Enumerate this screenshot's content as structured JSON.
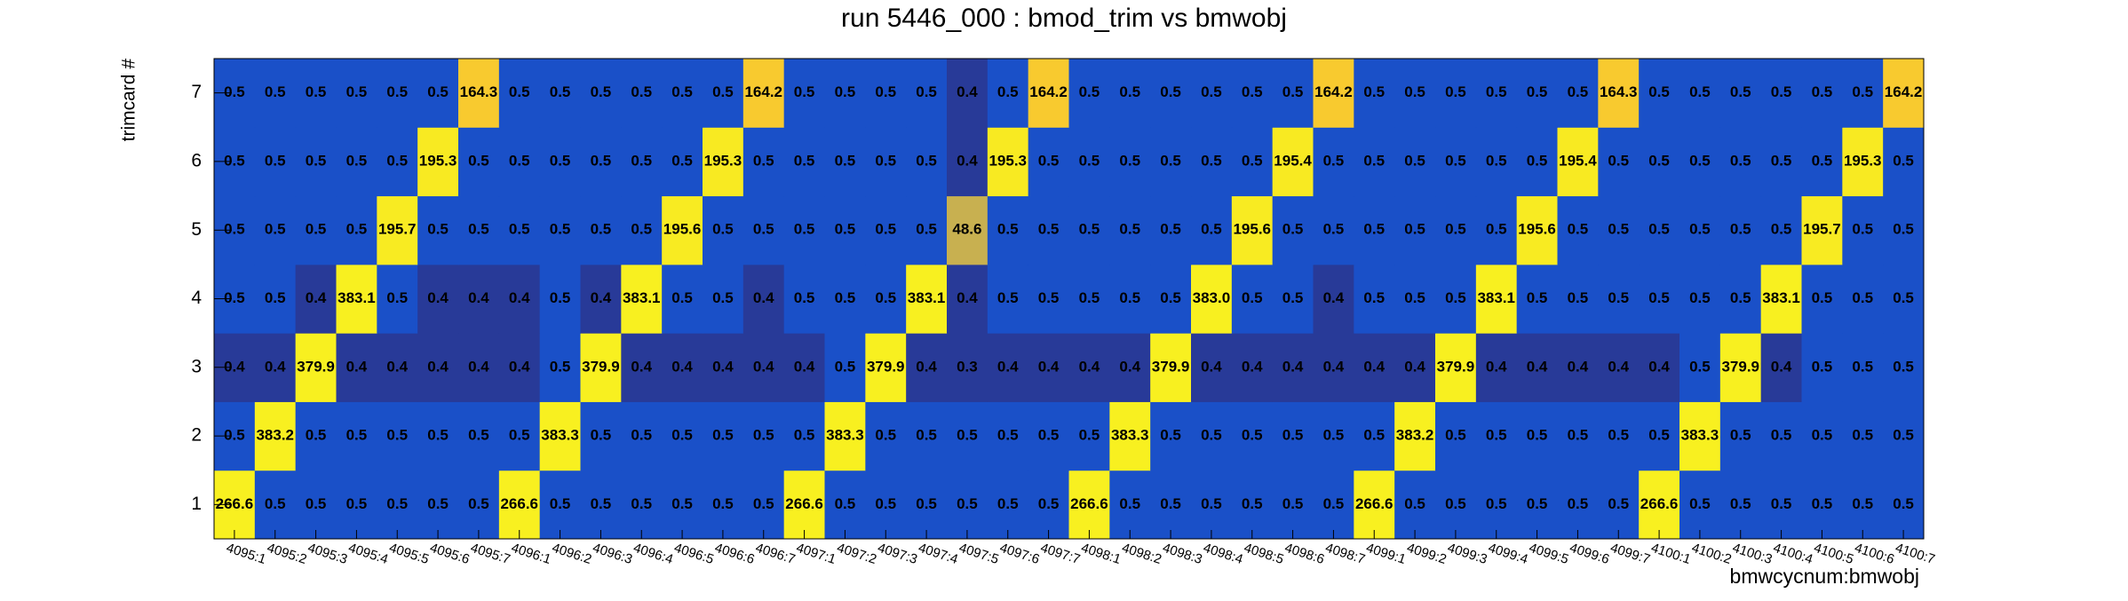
{
  "chart_data": {
    "type": "heatmap",
    "title": "run 5446_000 : bmod_trim vs bmwobj",
    "x_label": "bmwcycnum:bmwobj",
    "y_label": "trimcard #",
    "x_categories": [
      "4095:1",
      "4095:2",
      "4095:3",
      "4095:4",
      "4095:5",
      "4095:6",
      "4095:7",
      "4096:1",
      "4096:2",
      "4096:3",
      "4096:4",
      "4096:5",
      "4096:6",
      "4096:7",
      "4097:1",
      "4097:2",
      "4097:3",
      "4097:4",
      "4097:5",
      "4097:6",
      "4097:7",
      "4098:1",
      "4098:2",
      "4098:3",
      "4098:4",
      "4098:5",
      "4098:6",
      "4098:7",
      "4099:1",
      "4099:2",
      "4099:3",
      "4099:4",
      "4099:5",
      "4099:6",
      "4099:7",
      "4100:1",
      "4100:2",
      "4100:3",
      "4100:4",
      "4100:5",
      "4100:6",
      "4100:7"
    ],
    "y_categories": [
      "1",
      "2",
      "3",
      "4",
      "5",
      "6",
      "7"
    ],
    "values": [
      [
        266.6,
        0.5,
        0.5,
        0.5,
        0.5,
        0.5,
        0.5,
        266.6,
        0.5,
        0.5,
        0.5,
        0.5,
        0.5,
        0.5,
        266.6,
        0.5,
        0.5,
        0.5,
        0.5,
        0.5,
        0.5,
        266.6,
        0.5,
        0.5,
        0.5,
        0.5,
        0.5,
        0.5,
        266.6,
        0.5,
        0.5,
        0.5,
        0.5,
        0.5,
        0.5,
        266.6,
        0.5,
        0.5,
        0.5,
        0.5,
        0.5,
        0.5
      ],
      [
        0.5,
        383.2,
        0.5,
        0.5,
        0.5,
        0.5,
        0.5,
        0.5,
        383.3,
        0.5,
        0.5,
        0.5,
        0.5,
        0.5,
        0.5,
        383.3,
        0.5,
        0.5,
        0.5,
        0.5,
        0.5,
        0.5,
        383.3,
        0.5,
        0.5,
        0.5,
        0.5,
        0.5,
        0.5,
        383.2,
        0.5,
        0.5,
        0.5,
        0.5,
        0.5,
        0.5,
        383.3,
        0.5,
        0.5,
        0.5,
        0.5,
        0.5
      ],
      [
        0.4,
        0.4,
        379.9,
        0.4,
        0.4,
        0.4,
        0.4,
        0.4,
        0.5,
        379.9,
        0.4,
        0.4,
        0.4,
        0.4,
        0.4,
        0.5,
        379.9,
        0.4,
        0.3,
        0.4,
        0.4,
        0.4,
        0.4,
        379.9,
        0.4,
        0.4,
        0.4,
        0.4,
        0.4,
        0.4,
        379.9,
        0.4,
        0.4,
        0.4,
        0.4,
        0.4,
        0.5,
        379.9,
        0.4,
        0.5,
        0.5,
        0.5
      ],
      [
        0.5,
        0.5,
        0.4,
        383.1,
        0.5,
        0.4,
        0.4,
        0.4,
        0.5,
        0.4,
        383.1,
        0.5,
        0.5,
        0.4,
        0.5,
        0.5,
        0.5,
        383.1,
        0.4,
        0.5,
        0.5,
        0.5,
        0.5,
        0.5,
        383.0,
        0.5,
        0.5,
        0.4,
        0.5,
        0.5,
        0.5,
        383.1,
        0.5,
        0.5,
        0.5,
        0.5,
        0.5,
        0.5,
        383.1,
        0.5,
        0.5,
        0.5
      ],
      [
        0.5,
        0.5,
        0.5,
        0.5,
        195.7,
        0.5,
        0.5,
        0.5,
        0.5,
        0.5,
        0.5,
        195.6,
        0.5,
        0.5,
        0.5,
        0.5,
        0.5,
        0.5,
        48.6,
        0.5,
        0.5,
        0.5,
        0.5,
        0.5,
        0.5,
        195.6,
        0.5,
        0.5,
        0.5,
        0.5,
        0.5,
        0.5,
        195.6,
        0.5,
        0.5,
        0.5,
        0.5,
        0.5,
        0.5,
        195.7,
        0.5,
        0.5
      ],
      [
        0.5,
        0.5,
        0.5,
        0.5,
        0.5,
        195.3,
        0.5,
        0.5,
        0.5,
        0.5,
        0.5,
        0.5,
        195.3,
        0.5,
        0.5,
        0.5,
        0.5,
        0.5,
        0.4,
        195.3,
        0.5,
        0.5,
        0.5,
        0.5,
        0.5,
        0.5,
        195.4,
        0.5,
        0.5,
        0.5,
        0.5,
        0.5,
        0.5,
        195.4,
        0.5,
        0.5,
        0.5,
        0.5,
        0.5,
        0.5,
        195.3,
        0.5
      ],
      [
        0.5,
        0.5,
        0.5,
        0.5,
        0.5,
        0.5,
        164.3,
        0.5,
        0.5,
        0.5,
        0.5,
        0.5,
        0.5,
        164.2,
        0.5,
        0.5,
        0.5,
        0.5,
        0.4,
        0.5,
        164.2,
        0.5,
        0.5,
        0.5,
        0.5,
        0.5,
        0.5,
        164.2,
        0.5,
        0.5,
        0.5,
        0.5,
        0.5,
        0.5,
        164.3,
        0.5,
        0.5,
        0.5,
        0.5,
        0.5,
        0.5,
        164.2
      ]
    ],
    "value_labels": [
      [
        "266.6",
        "0.5",
        "0.5",
        "0.5",
        "0.5",
        "0.5",
        "0.5",
        "266.6",
        "0.5",
        "0.5",
        "0.5",
        "0.5",
        "0.5",
        "0.5",
        "266.6",
        "0.5",
        "0.5",
        "0.5",
        "0.5",
        "0.5",
        "0.5",
        "266.6",
        "0.5",
        "0.5",
        "0.5",
        "0.5",
        "0.5",
        "0.5",
        "266.6",
        "0.5",
        "0.5",
        "0.5",
        "0.5",
        "0.5",
        "0.5",
        "266.6",
        "0.5",
        "0.5",
        "0.5",
        "0.5",
        "0.5",
        "0.5"
      ],
      [
        "0.5",
        "383.2",
        "0.5",
        "0.5",
        "0.5",
        "0.5",
        "0.5",
        "0.5",
        "383.3",
        "0.5",
        "0.5",
        "0.5",
        "0.5",
        "0.5",
        "0.5",
        "383.3",
        "0.5",
        "0.5",
        "0.5",
        "0.5",
        "0.5",
        "0.5",
        "383.3",
        "0.5",
        "0.5",
        "0.5",
        "0.5",
        "0.5",
        "0.5",
        "383.2",
        "0.5",
        "0.5",
        "0.5",
        "0.5",
        "0.5",
        "0.5",
        "383.3",
        "0.5",
        "0.5",
        "0.5",
        "0.5",
        "0.5"
      ],
      [
        "0.4",
        "0.4",
        "379.9",
        "0.4",
        "0.4",
        "0.4",
        "0.4",
        "0.4",
        "0.5",
        "379.9",
        "0.4",
        "0.4",
        "0.4",
        "0.4",
        "0.4",
        "0.5",
        "379.9",
        "0.4",
        "0.3",
        "0.4",
        "0.4",
        "0.4",
        "0.4",
        "379.9",
        "0.4",
        "0.4",
        "0.4",
        "0.4",
        "0.4",
        "0.4",
        "379.9",
        "0.4",
        "0.4",
        "0.4",
        "0.4",
        "0.4",
        "0.5",
        "379.9",
        "0.4",
        "0.5",
        "0.5",
        "0.5"
      ],
      [
        "0.5",
        "0.5",
        "0.4",
        "383.1",
        "0.5",
        "0.4",
        "0.4",
        "0.4",
        "0.5",
        "0.4",
        "383.1",
        "0.5",
        "0.5",
        "0.4",
        "0.5",
        "0.5",
        "0.5",
        "383.1",
        "0.4",
        "0.5",
        "0.5",
        "0.5",
        "0.5",
        "0.5",
        "383.0",
        "0.5",
        "0.5",
        "0.4",
        "0.5",
        "0.5",
        "0.5",
        "383.1",
        "0.5",
        "0.5",
        "0.5",
        "0.5",
        "0.5",
        "0.5",
        "383.1",
        "0.5",
        "0.5",
        "0.5"
      ],
      [
        "0.5",
        "0.5",
        "0.5",
        "0.5",
        "195.7",
        "0.5",
        "0.5",
        "0.5",
        "0.5",
        "0.5",
        "0.5",
        "195.6",
        "0.5",
        "0.5",
        "0.5",
        "0.5",
        "0.5",
        "0.5",
        "48.6",
        "0.5",
        "0.5",
        "0.5",
        "0.5",
        "0.5",
        "0.5",
        "195.6",
        "0.5",
        "0.5",
        "0.5",
        "0.5",
        "0.5",
        "0.5",
        "195.6",
        "0.5",
        "0.5",
        "0.5",
        "0.5",
        "0.5",
        "0.5",
        "195.7",
        "0.5",
        "0.5"
      ],
      [
        "0.5",
        "0.5",
        "0.5",
        "0.5",
        "0.5",
        "195.3",
        "0.5",
        "0.5",
        "0.5",
        "0.5",
        "0.5",
        "0.5",
        "195.3",
        "0.5",
        "0.5",
        "0.5",
        "0.5",
        "0.5",
        "0.4",
        "195.3",
        "0.5",
        "0.5",
        "0.5",
        "0.5",
        "0.5",
        "0.5",
        "195.4",
        "0.5",
        "0.5",
        "0.5",
        "0.5",
        "0.5",
        "0.5",
        "195.4",
        "0.5",
        "0.5",
        "0.5",
        "0.5",
        "0.5",
        "0.5",
        "195.3",
        "0.5"
      ],
      [
        "0.5",
        "0.5",
        "0.5",
        "0.5",
        "0.5",
        "0.5",
        "164.3",
        "0.5",
        "0.5",
        "0.5",
        "0.5",
        "0.5",
        "0.5",
        "164.2",
        "0.5",
        "0.5",
        "0.5",
        "0.5",
        "0.4",
        "0.5",
        "164.2",
        "0.5",
        "0.5",
        "0.5",
        "0.5",
        "0.5",
        "0.5",
        "164.2",
        "0.5",
        "0.5",
        "0.5",
        "0.5",
        "0.5",
        "0.5",
        "164.3",
        "0.5",
        "0.5",
        "0.5",
        "0.5",
        "0.5",
        "0.5",
        "164.2"
      ]
    ]
  }
}
